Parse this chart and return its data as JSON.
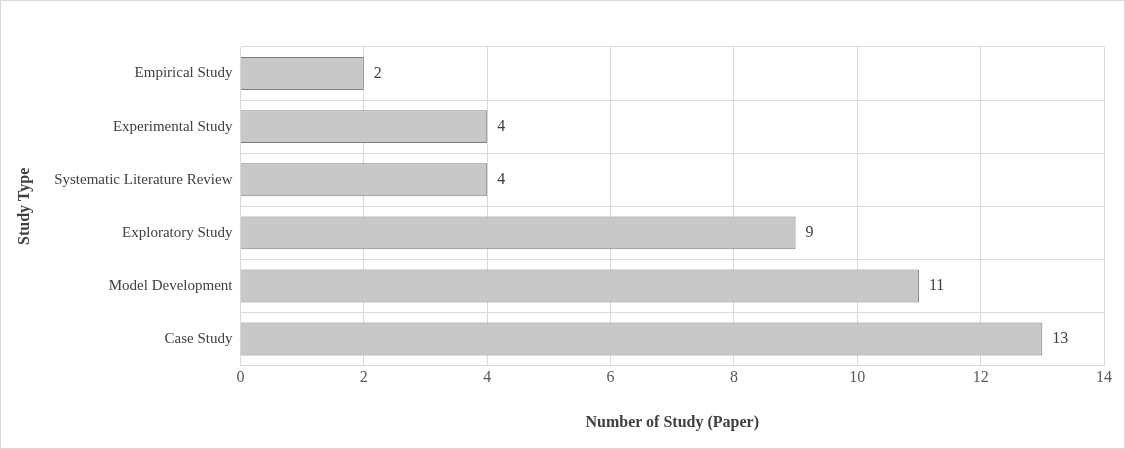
{
  "chart_data": {
    "type": "bar",
    "orientation": "horizontal",
    "xlabel": "Number of Study (Paper)",
    "ylabel": "Study Type",
    "categories": [
      "Empirical Study",
      "Experimental Study",
      "Systematic Literature Review",
      "Exploratory Study",
      "Model Development",
      "Case Study"
    ],
    "values": [
      2,
      4,
      4,
      9,
      11,
      13
    ],
    "color": "#c8c8c8",
    "xlim": [
      0,
      14
    ],
    "xticks": [
      0,
      2,
      4,
      6,
      8,
      10,
      12,
      14
    ],
    "grid": true,
    "data_labels": true,
    "legend": false
  }
}
